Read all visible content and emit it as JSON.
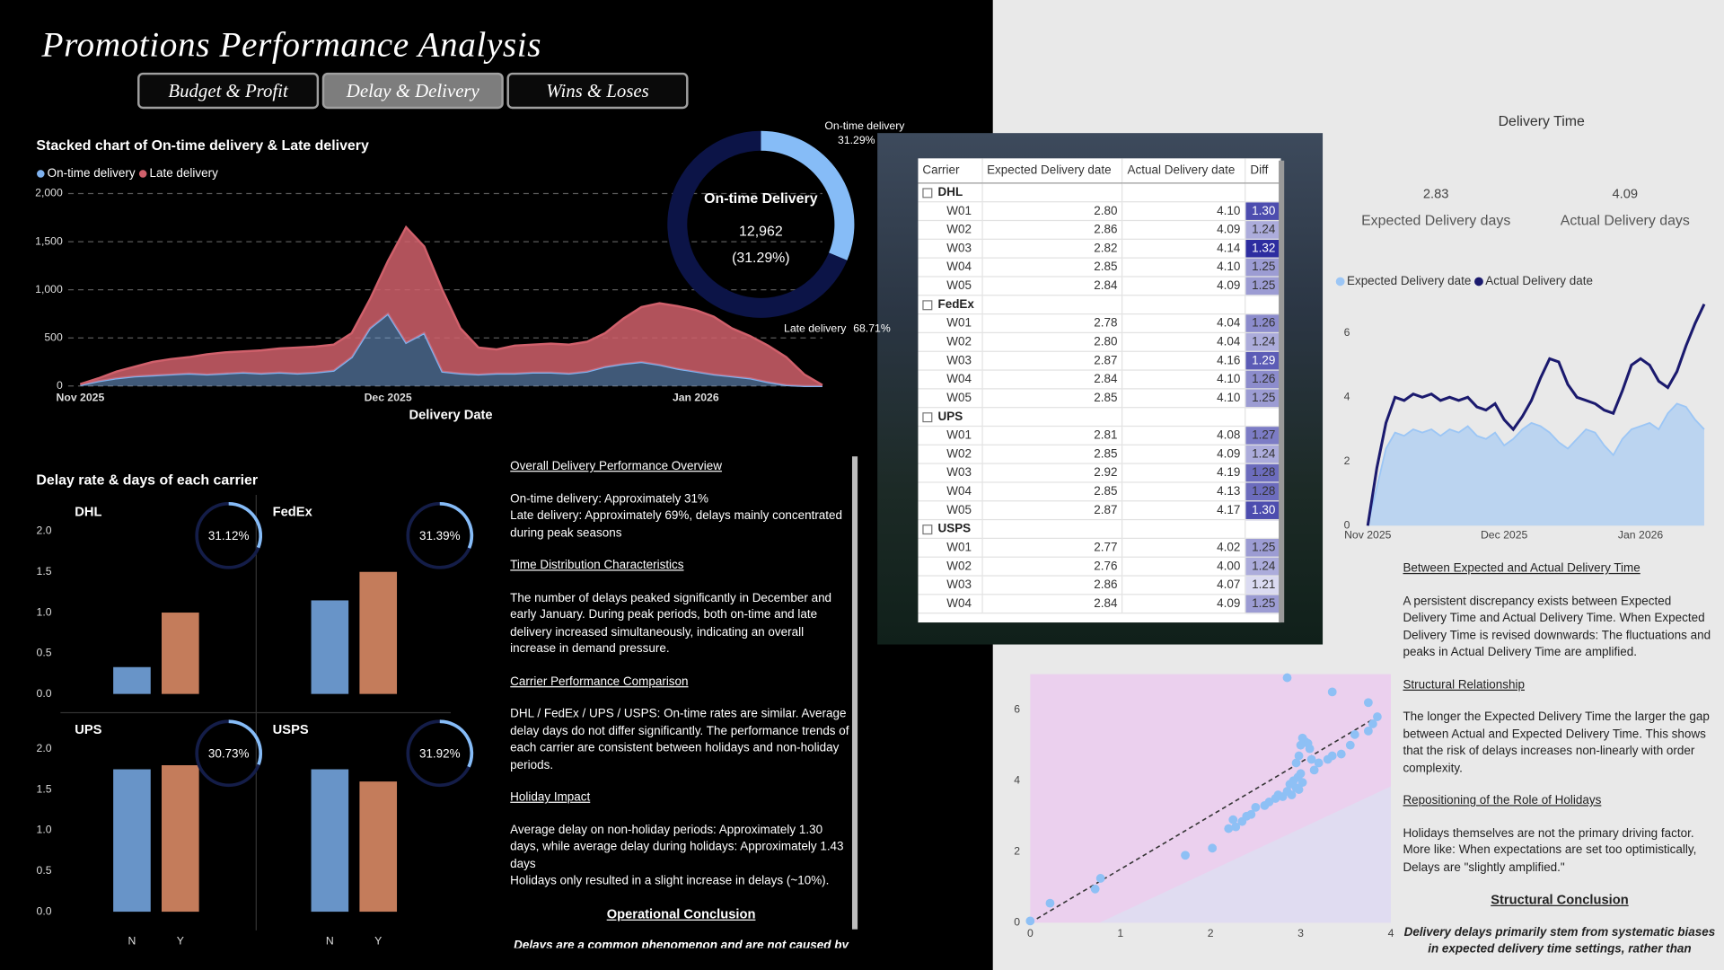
{
  "header": {
    "title": "Promotions Performance Analysis",
    "tabs": [
      "Budget & Profit",
      "Delay & Delivery",
      "Wins & Loses"
    ],
    "active_tab": 1
  },
  "carrier_section": {
    "title": "Delay rate & days of each carrier"
  },
  "chart_data": [
    {
      "type": "area",
      "title": "Stacked chart of On-time delivery & Late delivery",
      "x_label": "Delivery Date",
      "categories": [
        "Nov 2025",
        null,
        null,
        null,
        null,
        null,
        null,
        null,
        null,
        null,
        null,
        null,
        null,
        null,
        null,
        null,
        null,
        "Dec 2025",
        null,
        null,
        null,
        null,
        null,
        null,
        null,
        null,
        null,
        null,
        null,
        null,
        null,
        null,
        null,
        null,
        "Jan 2026",
        null,
        null,
        null,
        null,
        null,
        null,
        null
      ],
      "series": [
        {
          "name": "On-time delivery",
          "color": "#7fb2ef",
          "values": [
            10,
            50,
            80,
            100,
            110,
            120,
            130,
            120,
            130,
            140,
            130,
            140,
            130,
            140,
            160,
            300,
            600,
            750,
            450,
            550,
            150,
            130,
            120,
            130,
            130,
            140,
            140,
            130,
            150,
            200,
            230,
            250,
            220,
            180,
            150,
            120,
            100,
            80,
            40,
            10,
            0,
            0
          ]
        },
        {
          "name": "Late delivery",
          "color": "#d0606b",
          "values": [
            10,
            30,
            70,
            100,
            140,
            160,
            170,
            210,
            220,
            220,
            240,
            250,
            270,
            270,
            270,
            250,
            300,
            550,
            1200,
            900,
            850,
            470,
            280,
            250,
            290,
            290,
            300,
            300,
            310,
            350,
            470,
            570,
            640,
            650,
            640,
            600,
            500,
            440,
            380,
            290,
            120,
            10
          ]
        }
      ],
      "ylim": [
        0,
        2000
      ],
      "yticks": [
        0,
        500,
        {
          "value": 1000,
          "label": "1,000"
        },
        {
          "value": 1500,
          "label": "1,500"
        },
        {
          "value": 2000,
          "label": "2,000"
        }
      ],
      "grid": true
    },
    {
      "type": "donut",
      "labels": [
        "On-time delivery",
        "Late delivery"
      ],
      "values": [
        31.29,
        68.71
      ],
      "value_labels": [
        "31.29%",
        "68.71%"
      ],
      "colors": [
        "#86bcf7",
        "#0c1447"
      ],
      "center_title": "On-time Delivery",
      "center_value": "12,962",
      "center_percent": "(31.29%)"
    },
    {
      "type": "bar",
      "title": "DHL",
      "categories": [
        null,
        null
      ],
      "values": [
        0.33,
        1.0
      ],
      "colors": [
        "#6894c8",
        "#c47c5b"
      ],
      "ylim": [
        0,
        2.1
      ],
      "yticks": [
        {
          "value": 0,
          "label": "0.0"
        },
        0.5,
        {
          "value": 1,
          "label": "1.0"
        },
        1.5,
        {
          "value": 2,
          "label": "2.0"
        }
      ],
      "gauge": {
        "value": 31.12,
        "label": "31.12%"
      }
    },
    {
      "type": "bar",
      "title": "FedEx",
      "categories": [
        null,
        null
      ],
      "values": [
        1.15,
        1.5
      ],
      "colors": [
        "#6894c8",
        "#c47c5b"
      ],
      "ylim": [
        0,
        2.1
      ],
      "gauge": {
        "value": 31.39,
        "label": "31.39%"
      }
    },
    {
      "type": "bar",
      "title": "UPS",
      "categories": [
        "N",
        "Y"
      ],
      "values": [
        1.75,
        1.8
      ],
      "colors": [
        "#6894c8",
        "#c47c5b"
      ],
      "ylim": [
        0,
        2.1
      ],
      "yticks": [
        {
          "value": 0,
          "label": "0.0"
        },
        0.5,
        {
          "value": 1,
          "label": "1.0"
        },
        1.5,
        {
          "value": 2,
          "label": "2.0"
        }
      ],
      "gauge": {
        "value": 30.73,
        "label": "30.73%"
      }
    },
    {
      "type": "bar",
      "title": "USPS",
      "categories": [
        "N",
        "Y"
      ],
      "values": [
        1.75,
        1.6
      ],
      "colors": [
        "#6894c8",
        "#c47c5b"
      ],
      "ylim": [
        0,
        2.1
      ],
      "gauge": {
        "value": 31.92,
        "label": "31.92%"
      }
    },
    {
      "type": "line",
      "title": "Delivery Time",
      "kpis": [
        {
          "value": 2.83,
          "label": "Expected Delivery days"
        },
        {
          "value": 4.09,
          "label": "Actual Delivery days"
        }
      ],
      "categories": [
        "Nov 2025",
        null,
        null,
        null,
        null,
        null,
        null,
        null,
        null,
        null,
        null,
        null,
        null,
        null,
        null,
        "Dec 2025",
        null,
        null,
        null,
        null,
        null,
        null,
        null,
        null,
        null,
        null,
        null,
        null,
        null,
        null,
        "Jan 2026",
        null,
        null,
        null,
        null,
        null,
        null,
        null
      ],
      "series": [
        {
          "name": "Expected Delivery date",
          "color": "#9cc6f5",
          "style": "area",
          "values": [
            0,
            1.2,
            2.4,
            2.9,
            2.8,
            3.0,
            2.9,
            3.0,
            2.8,
            3.0,
            2.9,
            3.1,
            2.8,
            2.7,
            2.9,
            2.5,
            2.7,
            3.0,
            3.2,
            3.1,
            2.9,
            2.6,
            2.4,
            2.7,
            3.0,
            2.9,
            2.5,
            2.2,
            2.7,
            3.0,
            3.1,
            3.2,
            3.0,
            3.5,
            3.8,
            3.7,
            3.3,
            3.0
          ]
        },
        {
          "name": "Actual Delivery date",
          "color": "#1b1a6e",
          "style": "line",
          "values": [
            0,
            1.8,
            3.2,
            4.0,
            3.9,
            4.1,
            4.0,
            4.1,
            3.9,
            4.0,
            3.9,
            4.0,
            3.7,
            3.6,
            3.8,
            3.3,
            3.0,
            3.4,
            3.9,
            4.6,
            5.2,
            5.1,
            4.4,
            4.0,
            3.9,
            3.8,
            3.6,
            3.5,
            4.2,
            5.0,
            5.2,
            5.0,
            4.5,
            4.3,
            4.8,
            5.6,
            6.3,
            6.9
          ]
        }
      ],
      "ylim": [
        0,
        7
      ],
      "yticks": [
        0,
        2,
        4,
        6
      ]
    },
    {
      "type": "scatter",
      "color": "#8ec0f5",
      "x": [
        0,
        0.22,
        0.72,
        0.78,
        1.72,
        2.02,
        2.2,
        2.25,
        2.28,
        2.35,
        2.4,
        2.45,
        2.5,
        2.6,
        2.65,
        2.72,
        2.75,
        2.8,
        2.85,
        2.88,
        2.9,
        2.92,
        2.95,
        2.97,
        2.98,
        3.0,
        3.02,
        2.95,
        2.98,
        3.0,
        3.02,
        3.05,
        3.08,
        3.1,
        3.12,
        3.15,
        3.2,
        3.3,
        3.35,
        3.45,
        3.55,
        3.6,
        3.75,
        3.8,
        3.85,
        3.75,
        3.35,
        2.85
      ],
      "y": [
        0.05,
        0.55,
        0.95,
        1.25,
        1.9,
        2.1,
        2.65,
        2.9,
        2.7,
        2.85,
        3.0,
        3.05,
        3.25,
        3.3,
        3.4,
        3.5,
        3.6,
        3.55,
        3.7,
        3.9,
        3.6,
        4.0,
        3.8,
        4.1,
        3.75,
        4.2,
        3.95,
        4.5,
        4.7,
        5.0,
        5.2,
        5.1,
        5.05,
        4.9,
        4.6,
        4.3,
        4.5,
        4.6,
        4.7,
        4.75,
        5.0,
        5.3,
        5.4,
        5.6,
        5.8,
        6.2,
        6.5,
        6.9
      ],
      "trendline": {
        "x": [
          0,
          3.85
        ],
        "y": [
          0,
          5.8
        ]
      },
      "xlim": [
        0,
        4
      ],
      "ylim": [
        0,
        7
      ],
      "xticks": [
        0,
        1,
        2,
        3,
        4
      ],
      "yticks": [
        0,
        2,
        4,
        6
      ]
    }
  ],
  "table": {
    "columns": [
      "Carrier",
      "Expected Delivery date",
      "Actual Delivery date",
      "Diff"
    ],
    "groups": [
      {
        "name": "DHL",
        "rows": [
          [
            "W01",
            "2.80",
            "4.10",
            "1.30"
          ],
          [
            "W02",
            "2.86",
            "4.09",
            "1.24"
          ],
          [
            "W03",
            "2.82",
            "4.14",
            "1.32"
          ],
          [
            "W04",
            "2.85",
            "4.10",
            "1.25"
          ],
          [
            "W05",
            "2.84",
            "4.09",
            "1.25"
          ]
        ]
      },
      {
        "name": "FedEx",
        "rows": [
          [
            "W01",
            "2.78",
            "4.04",
            "1.26"
          ],
          [
            "W02",
            "2.80",
            "4.04",
            "1.24"
          ],
          [
            "W03",
            "2.87",
            "4.16",
            "1.29"
          ],
          [
            "W04",
            "2.84",
            "4.10",
            "1.26"
          ],
          [
            "W05",
            "2.85",
            "4.10",
            "1.25"
          ]
        ]
      },
      {
        "name": "UPS",
        "rows": [
          [
            "W01",
            "2.81",
            "4.08",
            "1.27"
          ],
          [
            "W02",
            "2.85",
            "4.09",
            "1.24"
          ],
          [
            "W03",
            "2.92",
            "4.19",
            "1.28"
          ],
          [
            "W04",
            "2.85",
            "4.13",
            "1.28"
          ],
          [
            "W05",
            "2.87",
            "4.17",
            "1.30"
          ]
        ]
      },
      {
        "name": "USPS",
        "rows": [
          [
            "W01",
            "2.77",
            "4.02",
            "1.25"
          ],
          [
            "W02",
            "2.76",
            "4.00",
            "1.24"
          ],
          [
            "W03",
            "2.86",
            "4.07",
            "1.21"
          ],
          [
            "W04",
            "2.84",
            "4.09",
            "1.25"
          ]
        ]
      }
    ]
  },
  "notes_left": {
    "sections": [
      {
        "heading": "Overall Delivery Performance Overview",
        "lines": [
          "On-time delivery: Approximately 31%",
          "Late delivery: Approximately 69%, delays mainly concentrated during peak seasons"
        ]
      },
      {
        "heading": "Time Distribution Characteristics",
        "lines": [
          "The number of delays peaked significantly in December and early January. During peak periods, both on-time and late delivery increased simultaneously, indicating an overall increase in demand pressure."
        ]
      },
      {
        "heading": "Carrier Performance Comparison",
        "lines": [
          "DHL / FedEx / UPS / USPS: On-time rates are similar. Average delay days do not differ significantly. The performance trends of each carrier are consistent between holidays and non-holiday periods."
        ]
      },
      {
        "heading": "Holiday Impact",
        "lines": [
          "Average delay on non-holiday periods: Approximately 1.30 days, while average delay during holidays: Approximately 1.43 days",
          "Holidays only resulted in a slight increase in delays (~10%)."
        ]
      }
    ],
    "conclusion": {
      "heading": "Operational Conclusion",
      "text": "Delays are a common phenomenon and are not caused by a"
    }
  },
  "notes_right": {
    "sections": [
      {
        "heading": "Between Expected and Actual Delivery Time",
        "lines": [
          "A persistent discrepancy exists between Expected Delivery Time and Actual Delivery Time. When Expected Delivery Time is revised downwards: The fluctuations and peaks in Actual Delivery Time are amplified."
        ]
      },
      {
        "heading": "Structural Relationship",
        "lines": [
          "The longer the Expected Delivery Time the larger the gap between Actual and Expected Delivery Time. This shows that the risk of delays increases non-linearly with order complexity."
        ]
      },
      {
        "heading": "Repositioning of the Role of Holidays",
        "lines": [
          "Holidays themselves are not the primary driving factor.",
          "More like: When expectations are set too optimistically, Delays are \"slightly amplified.\""
        ]
      }
    ],
    "conclusion": {
      "heading": "Structural Conclusion",
      "text": "Delivery delays primarily stem from systematic biases in expected delivery time settings, rather than insufficient"
    }
  }
}
